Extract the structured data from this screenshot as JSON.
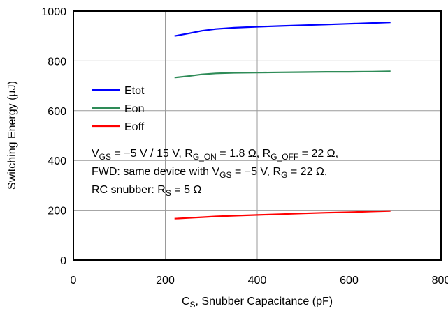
{
  "chart_data": {
    "type": "line",
    "xlabel_main": "C",
    "xlabel_sub": "S",
    "xlabel_rest": ", Snubber Capacitance (pF)",
    "ylabel": "Switching Energy (µJ)",
    "xlim": [
      0,
      800
    ],
    "ylim": [
      0,
      1000
    ],
    "xticks": [
      0,
      200,
      400,
      600,
      800
    ],
    "yticks": [
      0,
      200,
      400,
      600,
      800,
      1000
    ],
    "xtick_labels": [
      "0",
      "200",
      "400",
      "600",
      "800"
    ],
    "ytick_labels": [
      "0",
      "200",
      "400",
      "600",
      "800",
      "1000"
    ],
    "grid": true,
    "legend_position": "left",
    "series": [
      {
        "name": "Etot",
        "color": "#0000ff",
        "x": [
          220,
          250,
          280,
          310,
          350,
          400,
          450,
          500,
          550,
          600,
          650,
          690
        ],
        "y": [
          900,
          910,
          921,
          928,
          933,
          937,
          940,
          943,
          946,
          949,
          952,
          955
        ]
      },
      {
        "name": "Eon",
        "color": "#2e8b57",
        "x": [
          220,
          250,
          280,
          310,
          350,
          400,
          450,
          500,
          550,
          600,
          650,
          690
        ],
        "y": [
          733,
          739,
          746,
          750,
          752,
          753,
          754,
          755,
          756,
          756,
          757,
          758
        ]
      },
      {
        "name": "Eoff",
        "color": "#ff0000",
        "x": [
          220,
          250,
          280,
          310,
          350,
          400,
          450,
          500,
          550,
          600,
          650,
          690
        ],
        "y": [
          166,
          169,
          172,
          175,
          178,
          181,
          184,
          187,
          190,
          192,
          195,
          197
        ]
      }
    ],
    "annotation_lines": [
      [
        {
          "t": "V"
        },
        {
          "t": "GS",
          "sub": true
        },
        {
          "t": " = −5 V / 15 V, R"
        },
        {
          "t": "G_ON",
          "sub": true
        },
        {
          "t": " = 1.8 Ω, R"
        },
        {
          "t": "G_OFF",
          "sub": true
        },
        {
          "t": " = 22 Ω,"
        }
      ],
      [
        {
          "t": "FWD: same device with V"
        },
        {
          "t": "GS",
          "sub": true
        },
        {
          "t": " = −5 V, R"
        },
        {
          "t": "G",
          "sub": true
        },
        {
          "t": " = 22 Ω,"
        }
      ],
      [
        {
          "t": "RC snubber: R"
        },
        {
          "t": "S",
          "sub": true
        },
        {
          "t": " = 5 Ω"
        }
      ]
    ]
  }
}
